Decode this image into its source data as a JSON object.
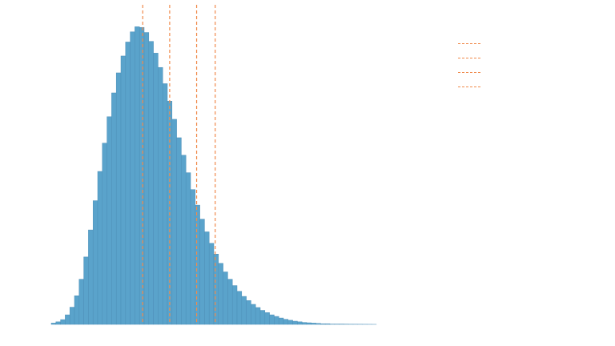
{
  "colors": {
    "bar_fill": "#5aa3cb",
    "bar_edge": "#4d8fb8",
    "reference_line": "#f08a4b",
    "background": "#ffffff"
  },
  "chart_data": {
    "type": "bar",
    "title": "",
    "xlabel": "",
    "ylabel": "",
    "grid": false,
    "legend_position": "top-right",
    "ylim": [
      0,
      1.0
    ],
    "x_start": 0,
    "bin_width": 1,
    "values": [
      0.004,
      0.008,
      0.015,
      0.03,
      0.054,
      0.09,
      0.142,
      0.212,
      0.297,
      0.389,
      0.481,
      0.57,
      0.653,
      0.728,
      0.791,
      0.844,
      0.888,
      0.92,
      0.936,
      0.934,
      0.918,
      0.89,
      0.853,
      0.808,
      0.757,
      0.702,
      0.645,
      0.587,
      0.532,
      0.477,
      0.424,
      0.375,
      0.331,
      0.291,
      0.255,
      0.221,
      0.192,
      0.165,
      0.142,
      0.122,
      0.104,
      0.088,
      0.075,
      0.063,
      0.053,
      0.044,
      0.037,
      0.03,
      0.025,
      0.02,
      0.016,
      0.013,
      0.01,
      0.008,
      0.006,
      0.005,
      0.004,
      0.003,
      0.002,
      0.002,
      0.001,
      0.001,
      0.001,
      0.0008,
      0.0006,
      0.0005,
      0.0004,
      0.0003,
      0.0002,
      0.0001
    ],
    "reference_lines": [
      {
        "x": 19.7,
        "label": ""
      },
      {
        "x": 25.5,
        "label": ""
      },
      {
        "x": 31.3,
        "label": ""
      },
      {
        "x": 35.3,
        "label": ""
      }
    ]
  }
}
